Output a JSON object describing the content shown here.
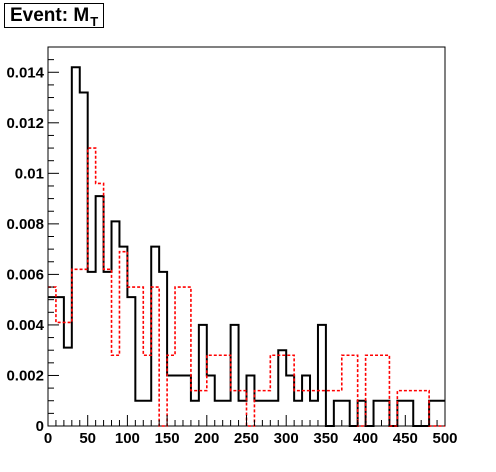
{
  "chart_data": {
    "type": "histogram",
    "title": "Event: M",
    "title_subscript": "T",
    "xlabel": "",
    "ylabel": "",
    "xlim": [
      0,
      500
    ],
    "ylim": [
      0,
      0.015
    ],
    "x_ticks": [
      0,
      50,
      100,
      150,
      200,
      250,
      300,
      350,
      400,
      450,
      500
    ],
    "x_tick_labels": [
      "0",
      "50",
      "100",
      "150",
      "200",
      "250",
      "300",
      "350",
      "400",
      "450",
      "500"
    ],
    "y_ticks": [
      0,
      0.002,
      0.004,
      0.006,
      0.008,
      0.01,
      0.012,
      0.014
    ],
    "y_tick_labels": [
      "0",
      "0.002",
      "0.004",
      "0.006",
      "0.008",
      "0.01",
      "0.012",
      "0.014"
    ],
    "grid": false,
    "bin_width": 10,
    "bin_edges_start": 0,
    "series": [
      {
        "color": "#000000",
        "style": "solid",
        "values": [
          0.0051,
          0.0051,
          0.0031,
          0.0142,
          0.0132,
          0.0061,
          0.0091,
          0.0061,
          0.0081,
          0.0071,
          0.0051,
          0.001,
          0.001,
          0.0071,
          0.0061,
          0.002,
          0.002,
          0.002,
          0.001,
          0.004,
          0.002,
          0.001,
          0.001,
          0.004,
          0.001,
          0.002,
          0.001,
          0.001,
          0.001,
          0.003,
          0.002,
          0.001,
          0.002,
          0.001,
          0.004,
          0.0,
          0.001,
          0.001,
          0.0,
          0.001,
          0.0,
          0.001,
          0.001,
          0.0,
          0.001,
          0.001,
          0.0,
          0.0,
          0.001,
          0.001
        ]
      },
      {
        "color": "#ff0000",
        "style": "dashed",
        "values": [
          0.0055,
          0.0041,
          0.0041,
          0.0062,
          0.0062,
          0.011,
          0.0096,
          0.0062,
          0.0028,
          0.0069,
          0.0055,
          0.0055,
          0.0028,
          0.0055,
          0.0,
          0.0028,
          0.0055,
          0.0055,
          0.0014,
          0.0014,
          0.0028,
          0.0028,
          0.0028,
          0.0014,
          0.0014,
          0.0,
          0.0014,
          0.0014,
          0.0028,
          0.0028,
          0.0028,
          0.0014,
          0.0014,
          0.0014,
          0.0014,
          0.0014,
          0.0014,
          0.0028,
          0.0028,
          0.0,
          0.0028,
          0.0028,
          0.0028,
          0.0,
          0.0014,
          0.0014,
          0.0014,
          0.0014,
          0.0,
          0.0
        ]
      }
    ]
  }
}
